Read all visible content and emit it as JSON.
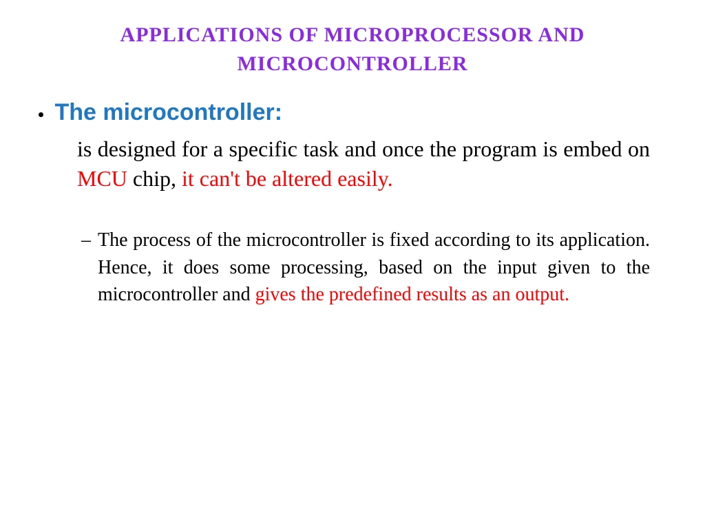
{
  "title": {
    "text": "Applications of Microprocessor and Microcontroller",
    "color": "#8a2be2",
    "fontsize": 30
  },
  "heading": {
    "label": "The microcontroller:",
    "color": "#1f78c1",
    "fontsize": 34
  },
  "para1": {
    "fontsize": 32,
    "runs": [
      {
        "text": "is designed for a specific task and once the program is embed on ",
        "color": "#000000"
      },
      {
        "text": "MCU",
        "color": "#ff0000"
      },
      {
        "text": " chip, ",
        "color": "#000000"
      },
      {
        "text": "it can't be altered easily.",
        "color": "#ff0000"
      }
    ]
  },
  "sub1": {
    "dash": "–",
    "fontsize": 28,
    "runs": [
      {
        "text": "The process of the microcontroller is fixed according to its application. Hence, it does some processing, based on the input given to the microcontroller and ",
        "color": "#000000"
      },
      {
        "text": "gives the predefined results as an output.",
        "color": "#ff0000"
      }
    ]
  }
}
